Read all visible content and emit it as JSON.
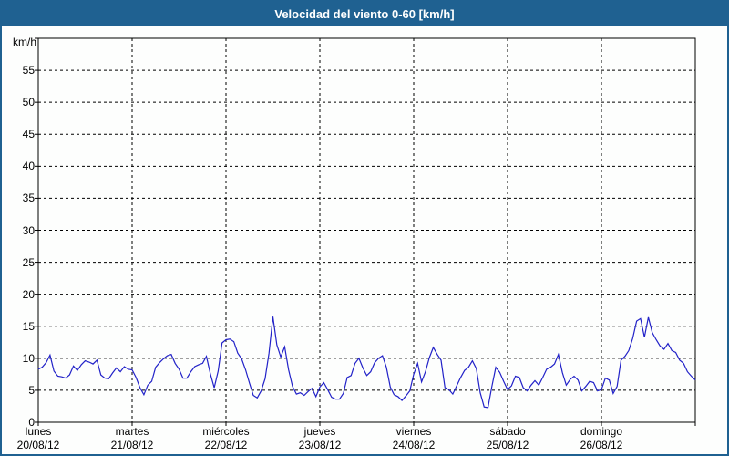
{
  "header": {
    "title": "Velocidad del viento 0-60 [km/h]"
  },
  "colors": {
    "titlebar_bg": "#1f6191",
    "window_border": "#1f6191",
    "plot_bg": "#fdfefd",
    "line": "#2222c8",
    "grid": "#000000",
    "text": "#000000"
  },
  "chart_data": {
    "type": "line",
    "title": "Velocidad del viento 0-60 [km/h]",
    "xlabel": "",
    "ylabel": "km/h",
    "ylim": [
      0,
      60
    ],
    "ytick_step": 5,
    "yticks": [
      55,
      50,
      45,
      40,
      35,
      30,
      25,
      20,
      15,
      10,
      5,
      0
    ],
    "grid": "dashed",
    "legend_position": "none",
    "days": [
      {
        "name": "lunes",
        "date": "20/08/12"
      },
      {
        "name": "martes",
        "date": "21/08/12"
      },
      {
        "name": "miércoles",
        "date": "22/08/12"
      },
      {
        "name": "jueves",
        "date": "23/08/12"
      },
      {
        "name": "viernes",
        "date": "24/08/12"
      },
      {
        "name": "sábado",
        "date": "25/08/12"
      },
      {
        "name": "domingo",
        "date": "26/08/12"
      }
    ],
    "samples_per_day": 24,
    "series_name": "Velocidad del viento [km/h]",
    "values": [
      8.3,
      8.6,
      9.3,
      10.5,
      8.0,
      7.2,
      7.1,
      6.9,
      7.4,
      8.8,
      8.1,
      9.0,
      9.6,
      9.4,
      9.1,
      9.7,
      7.4,
      6.9,
      6.8,
      7.7,
      8.5,
      7.9,
      8.7,
      8.3,
      8.2,
      7.0,
      5.4,
      4.3,
      5.8,
      6.4,
      8.6,
      9.3,
      9.9,
      10.4,
      10.6,
      9.2,
      8.3,
      6.9,
      6.9,
      7.9,
      8.7,
      9.0,
      9.2,
      10.3,
      7.6,
      5.4,
      8.0,
      12.4,
      12.9,
      13.0,
      12.6,
      10.8,
      9.9,
      8.2,
      6.1,
      4.2,
      3.8,
      4.9,
      6.8,
      10.8,
      16.5,
      12.1,
      10.2,
      11.8,
      8.2,
      5.6,
      4.4,
      4.6,
      4.2,
      4.8,
      5.3,
      4.0,
      5.5,
      6.2,
      5.1,
      3.9,
      3.6,
      3.6,
      4.5,
      7.0,
      7.3,
      9.2,
      10.0,
      8.5,
      7.3,
      7.9,
      9.3,
      10.0,
      10.4,
      8.6,
      5.5,
      4.3,
      4.0,
      3.4,
      4.1,
      4.9,
      7.5,
      9.2,
      6.3,
      7.9,
      10.1,
      11.7,
      10.6,
      9.7,
      5.4,
      5.1,
      4.4,
      5.7,
      7.0,
      8.1,
      8.6,
      9.6,
      8.4,
      4.6,
      2.4,
      2.3,
      5.6,
      8.6,
      7.8,
      6.4,
      5.1,
      5.7,
      7.2,
      7.0,
      5.4,
      4.9,
      5.8,
      6.5,
      5.8,
      7.0,
      8.3,
      8.6,
      9.1,
      10.6,
      7.8,
      5.8,
      6.7,
      7.2,
      6.6,
      4.9,
      5.6,
      6.4,
      6.2,
      4.9,
      5.1,
      6.9,
      6.6,
      4.5,
      5.6,
      9.7,
      10.3,
      11.2,
      13.1,
      15.8,
      16.2,
      13.3,
      16.4,
      14.0,
      12.9,
      11.9,
      11.4,
      12.3,
      11.2,
      10.9,
      9.7,
      9.2,
      7.9,
      7.2,
      6.6
    ]
  }
}
